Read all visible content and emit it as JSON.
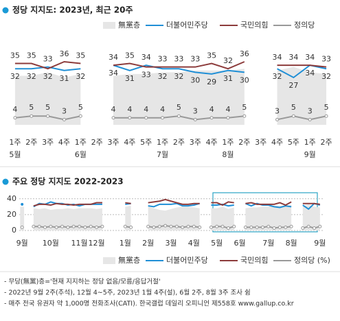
{
  "chart_data": [
    {
      "type": "line",
      "title": "정당 지지도: 2023년, 최근 20주",
      "categories": [
        "1주",
        "2주",
        "3주",
        "4주",
        "1주",
        "2주",
        "3주",
        "4주",
        "5주",
        "1주",
        "2주",
        "3주",
        "4주",
        "1주",
        "2주",
        "3주",
        "4주",
        "5주",
        "1주",
        "2주"
      ],
      "month_labels": [
        "5월",
        null,
        null,
        null,
        "6월",
        null,
        null,
        null,
        null,
        "7월",
        null,
        null,
        null,
        "8월",
        null,
        null,
        null,
        null,
        "9월",
        null
      ],
      "ylim": [
        0,
        45
      ],
      "series": [
        {
          "name": "無黨층",
          "kind": "area",
          "color": "#e6e6e6",
          "values": [
            28,
            28,
            30,
            27,
            29,
            null,
            28,
            29,
            29,
            30,
            30,
            31,
            31,
            31,
            32,
            null,
            31,
            33,
            30,
            29
          ]
        },
        {
          "name": "더불어민주당",
          "color": "#1f8fd6",
          "values": [
            32,
            32,
            33,
            31,
            32,
            null,
            34,
            31,
            34,
            32,
            32,
            30,
            29,
            31,
            30,
            null,
            32,
            27,
            34,
            32
          ]
        },
        {
          "name": "국민의힘",
          "color": "#8c3b3b",
          "values": [
            35,
            35,
            32,
            36,
            35,
            null,
            34,
            35,
            33,
            33,
            33,
            33,
            35,
            32,
            36,
            null,
            34,
            34,
            34,
            33
          ]
        },
        {
          "name": "정의당",
          "color": "#999999",
          "values": [
            4,
            5,
            5,
            3,
            5,
            null,
            4,
            4,
            4,
            4,
            5,
            3,
            4,
            4,
            5,
            null,
            3,
            5,
            3,
            5
          ]
        }
      ]
    },
    {
      "type": "line",
      "title": "주요 정당 지지도 2022-2023",
      "categories": [
        "9월",
        null,
        null,
        null,
        null,
        "10월",
        null,
        null,
        null,
        null,
        "11월",
        null,
        null,
        "12월",
        null,
        null,
        null,
        null,
        "1월",
        null,
        null,
        null,
        "2월",
        null,
        null,
        null,
        "3월",
        null,
        null,
        null,
        "4월",
        null,
        null,
        null,
        "5월",
        null,
        null,
        null,
        "6월",
        null,
        null,
        null,
        null,
        "7월",
        null,
        null,
        null,
        "8월",
        null,
        null,
        null,
        null,
        "9월"
      ],
      "ylim": [
        0,
        45
      ],
      "yticks": [
        0,
        20,
        40
      ],
      "grid": true,
      "series": [
        {
          "name": "無黨층",
          "kind": "area",
          "color": "#e6e6e6",
          "values": [
            30,
            null,
            28,
            27,
            28,
            26,
            27,
            27,
            28,
            27,
            28,
            28,
            28,
            27,
            28,
            null,
            null,
            null,
            30,
            31,
            null,
            null,
            30,
            28,
            26,
            25,
            27,
            29,
            30,
            30,
            29,
            28,
            null,
            28,
            28,
            30,
            27,
            29,
            null,
            28,
            29,
            29,
            30,
            30,
            31,
            31,
            31,
            32,
            null,
            31,
            33,
            30,
            29
          ]
        },
        {
          "name": "더불어민주당",
          "color": "#1f8fd6",
          "values": [
            33,
            null,
            30,
            34,
            33,
            36,
            34,
            34,
            32,
            33,
            31,
            33,
            33,
            33,
            33,
            null,
            null,
            null,
            33,
            34,
            null,
            null,
            31,
            30,
            33,
            33,
            33,
            34,
            31,
            31,
            32,
            34,
            null,
            32,
            32,
            33,
            31,
            32,
            null,
            34,
            31,
            34,
            32,
            32,
            30,
            29,
            31,
            30,
            null,
            32,
            27,
            34,
            32
          ]
        },
        {
          "name": "국민의힘",
          "color": "#8c3b3b",
          "values": [
            null,
            null,
            31,
            33,
            33,
            32,
            34,
            33,
            33,
            32,
            33,
            33,
            33,
            35,
            35,
            null,
            null,
            null,
            35,
            34,
            null,
            null,
            35,
            36,
            37,
            39,
            37,
            35,
            33,
            33,
            34,
            34,
            null,
            35,
            35,
            32,
            36,
            35,
            null,
            34,
            35,
            33,
            33,
            33,
            33,
            35,
            32,
            36,
            null,
            34,
            34,
            34,
            33
          ]
        },
        {
          "name": "정의당 (%)",
          "color": "#999999",
          "values": [
            4,
            null,
            5,
            5,
            4,
            5,
            4,
            5,
            4,
            5,
            5,
            4,
            5,
            4,
            5,
            null,
            null,
            null,
            5,
            4,
            null,
            null,
            5,
            4,
            5,
            6,
            5,
            5,
            4,
            5,
            5,
            4,
            null,
            4,
            5,
            5,
            3,
            5,
            null,
            4,
            4,
            4,
            4,
            5,
            3,
            4,
            4,
            5,
            null,
            3,
            5,
            3,
            5
          ]
        }
      ]
    }
  ],
  "notes": [
    "- 무당(無黨)층='현재 지지하는 정당 없음/모름/응답거절'",
    "- 2022년 9월 2주(추석), 12월 4~5주, 2023년 1월 4주(설), 6월 2주, 8월 3주 조사 쉼",
    "- 매주 전국 유권자 약 1,000명 전화조사(CATI). 한국갤럽 데일리 오피니언 제558호 www.gallup.co.kr"
  ]
}
